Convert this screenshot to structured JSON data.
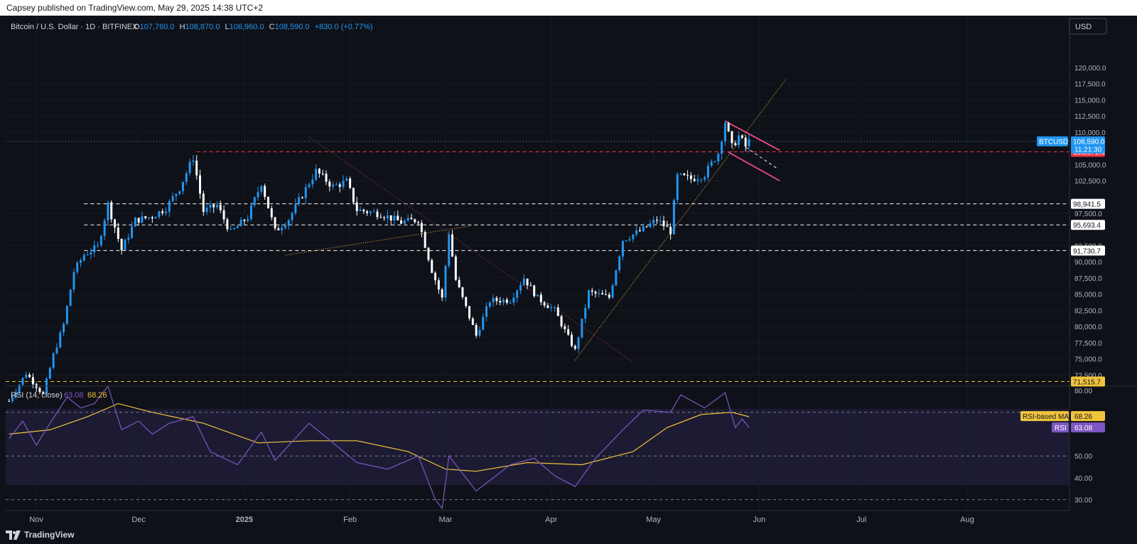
{
  "header": {
    "published": "Capsey published on TradingView.com, May 29, 2025 14:38 UTC+2"
  },
  "legend": {
    "symbol": "Bitcoin / U.S. Dollar · 1D · BITFINEX",
    "o_label": "O",
    "o": "107,760.0",
    "h_label": "H",
    "h": "108,870.0",
    "l_label": "L",
    "l": "106,960.0",
    "c_label": "C",
    "c": "108,590.0",
    "change": "+830.0 (+0.77%)"
  },
  "currency_button": "USD",
  "footer": {
    "brand": "TradingView"
  },
  "colors": {
    "up": "#2196f3",
    "down": "#ffffff",
    "rsi": "#7e57c2",
    "rsi_ma": "#f0c33c",
    "red_dash": "#f23645",
    "pink": "#ff4d8d",
    "yellow": "#f0c33c",
    "bg": "#0f1118"
  },
  "chart_data": {
    "type": "candlestick",
    "x_range": [
      "2024-10-23",
      "2025-08-31"
    ],
    "y_range": [
      70800,
      122500
    ],
    "x_ticks": [
      {
        "date": "2024-11-01",
        "label": "Nov",
        "bold": false
      },
      {
        "date": "2024-12-01",
        "label": "Dec",
        "bold": false
      },
      {
        "date": "2025-01-01",
        "label": "2025",
        "bold": true
      },
      {
        "date": "2025-02-01",
        "label": "Feb",
        "bold": false
      },
      {
        "date": "2025-03-01",
        "label": "Mar",
        "bold": false
      },
      {
        "date": "2025-04-01",
        "label": "Apr",
        "bold": false
      },
      {
        "date": "2025-05-01",
        "label": "May",
        "bold": false
      },
      {
        "date": "2025-06-01",
        "label": "Jun",
        "bold": false
      },
      {
        "date": "2025-07-01",
        "label": "Jul",
        "bold": false
      },
      {
        "date": "2025-08-01",
        "label": "Aug",
        "bold": false
      }
    ],
    "y_ticks": [
      "120,000.0",
      "117,500.0",
      "115,000.0",
      "112,500.0",
      "110,000.0",
      "105,000.0",
      "102,500.0",
      "97,500.0",
      "92,500.0",
      "90,000.0",
      "87,500.0",
      "85,000.0",
      "82,500.0",
      "80,000.0",
      "77,500.0",
      "75,000.0",
      "72,500.0"
    ],
    "closes": [
      {
        "date": "2024-10-24",
        "close": 68500
      },
      {
        "date": "2024-10-29",
        "close": 72800
      },
      {
        "date": "2024-11-03",
        "close": 69500
      },
      {
        "date": "2024-11-06",
        "close": 75600
      },
      {
        "date": "2024-11-09",
        "close": 80300
      },
      {
        "date": "2024-11-12",
        "close": 88500
      },
      {
        "date": "2024-11-15",
        "close": 91100
      },
      {
        "date": "2024-11-19",
        "close": 92300
      },
      {
        "date": "2024-11-22",
        "close": 98900
      },
      {
        "date": "2024-11-26",
        "close": 91800
      },
      {
        "date": "2024-11-30",
        "close": 96400
      },
      {
        "date": "2024-12-05",
        "close": 97000
      },
      {
        "date": "2024-12-09",
        "close": 98300
      },
      {
        "date": "2024-12-13",
        "close": 101400
      },
      {
        "date": "2024-12-17",
        "close": 106100
      },
      {
        "date": "2024-12-20",
        "close": 97800
      },
      {
        "date": "2024-12-24",
        "close": 98700
      },
      {
        "date": "2024-12-28",
        "close": 94500
      },
      {
        "date": "2025-01-02",
        "close": 96900
      },
      {
        "date": "2025-01-06",
        "close": 102200
      },
      {
        "date": "2025-01-10",
        "close": 94700
      },
      {
        "date": "2025-01-14",
        "close": 96600
      },
      {
        "date": "2025-01-20",
        "close": 102200
      },
      {
        "date": "2025-01-22",
        "close": 104000
      },
      {
        "date": "2025-01-27",
        "close": 101600
      },
      {
        "date": "2025-01-31",
        "close": 102400
      },
      {
        "date": "2025-02-03",
        "close": 98000
      },
      {
        "date": "2025-02-10",
        "close": 97400
      },
      {
        "date": "2025-02-16",
        "close": 96100
      },
      {
        "date": "2025-02-21",
        "close": 96500
      },
      {
        "date": "2025-02-25",
        "close": 88700
      },
      {
        "date": "2025-02-28",
        "close": 84300
      },
      {
        "date": "2025-03-02",
        "close": 94500
      },
      {
        "date": "2025-03-04",
        "close": 87200
      },
      {
        "date": "2025-03-10",
        "close": 78600
      },
      {
        "date": "2025-03-14",
        "close": 84000
      },
      {
        "date": "2025-03-20",
        "close": 84100
      },
      {
        "date": "2025-03-24",
        "close": 87500
      },
      {
        "date": "2025-03-28",
        "close": 84400
      },
      {
        "date": "2025-04-02",
        "close": 82500
      },
      {
        "date": "2025-04-06",
        "close": 78300
      },
      {
        "date": "2025-04-08",
        "close": 76300
      },
      {
        "date": "2025-04-12",
        "close": 85300
      },
      {
        "date": "2025-04-18",
        "close": 84500
      },
      {
        "date": "2025-04-22",
        "close": 93400
      },
      {
        "date": "2025-04-28",
        "close": 95000
      },
      {
        "date": "2025-05-02",
        "close": 96500
      },
      {
        "date": "2025-05-06",
        "close": 94700
      },
      {
        "date": "2025-05-08",
        "close": 103200
      },
      {
        "date": "2025-05-12",
        "close": 102800
      },
      {
        "date": "2025-05-16",
        "close": 103500
      },
      {
        "date": "2025-05-20",
        "close": 106800
      },
      {
        "date": "2025-05-22",
        "close": 111600
      },
      {
        "date": "2025-05-24",
        "close": 107700
      },
      {
        "date": "2025-05-26",
        "close": 109400
      },
      {
        "date": "2025-05-28",
        "close": 107800
      },
      {
        "date": "2025-05-29",
        "close": 108590
      }
    ],
    "price_levels": [
      {
        "value": 106971.4,
        "label": "106,971.4",
        "style": "red-dash"
      },
      {
        "value": 98941.5,
        "label": "98,941.5",
        "style": "white-dash"
      },
      {
        "value": 95693.4,
        "label": "95,693.4",
        "style": "white-dash"
      },
      {
        "value": 91730.7,
        "label": "91,730.7",
        "style": "white-dash"
      },
      {
        "value": 71515.7,
        "label": "71,515.7",
        "style": "yellow-dash"
      }
    ],
    "current_price": {
      "symbol": "BTCUSD",
      "price": "108,590.0",
      "countdown": "11:21:30",
      "value": 108590
    },
    "trendlines": [
      {
        "style": "red-dotted",
        "from": {
          "date": "2025-01-20",
          "value": 109300
        },
        "to": {
          "date": "2025-04-25",
          "value": 74500
        }
      },
      {
        "style": "yellow-dotted",
        "from": {
          "date": "2025-01-13",
          "value": 91000
        },
        "to": {
          "date": "2025-03-08",
          "value": 95500
        }
      },
      {
        "style": "yellow-dotted",
        "from": {
          "date": "2025-04-08",
          "value": 74800
        },
        "to": {
          "date": "2025-06-09",
          "value": 118300
        }
      },
      {
        "style": "pink",
        "from": {
          "date": "2025-05-22",
          "value": 111700
        },
        "to": {
          "date": "2025-06-07",
          "value": 107200
        }
      },
      {
        "style": "pink",
        "from": {
          "date": "2025-05-23",
          "value": 106900
        },
        "to": {
          "date": "2025-06-07",
          "value": 102500
        }
      },
      {
        "style": "white-dash",
        "from": {
          "date": "2025-05-28",
          "value": 107700
        },
        "to": {
          "date": "2025-06-06",
          "value": 104500
        }
      }
    ],
    "rsi": {
      "title": "RSI (14, close)",
      "value": "63.08",
      "ma_value": "68.26",
      "y_range": [
        25,
        82
      ],
      "y_ticks": [
        "80.00",
        "50.00",
        "40.00",
        "30.00"
      ],
      "bands": [
        70,
        50,
        30
      ],
      "rsi_label": "RSI",
      "ma_label": "RSI-based MA",
      "rsi_points": [
        {
          "date": "2024-10-24",
          "value": 58
        },
        {
          "date": "2024-10-28",
          "value": 66
        },
        {
          "date": "2024-11-01",
          "value": 55
        },
        {
          "date": "2024-11-05",
          "value": 65
        },
        {
          "date": "2024-11-10",
          "value": 77
        },
        {
          "date": "2024-11-14",
          "value": 72
        },
        {
          "date": "2024-11-18",
          "value": 74
        },
        {
          "date": "2024-11-22",
          "value": 82
        },
        {
          "date": "2024-11-26",
          "value": 62
        },
        {
          "date": "2024-12-01",
          "value": 66
        },
        {
          "date": "2024-12-05",
          "value": 60
        },
        {
          "date": "2024-12-10",
          "value": 65
        },
        {
          "date": "2024-12-17",
          "value": 68
        },
        {
          "date": "2024-12-22",
          "value": 52
        },
        {
          "date": "2024-12-30",
          "value": 46
        },
        {
          "date": "2025-01-06",
          "value": 61
        },
        {
          "date": "2025-01-10",
          "value": 48
        },
        {
          "date": "2025-01-20",
          "value": 65
        },
        {
          "date": "2025-01-27",
          "value": 56
        },
        {
          "date": "2025-02-03",
          "value": 47
        },
        {
          "date": "2025-02-12",
          "value": 44
        },
        {
          "date": "2025-02-21",
          "value": 50
        },
        {
          "date": "2025-02-26",
          "value": 30
        },
        {
          "date": "2025-02-28",
          "value": 26
        },
        {
          "date": "2025-03-02",
          "value": 50
        },
        {
          "date": "2025-03-10",
          "value": 34
        },
        {
          "date": "2025-03-20",
          "value": 46
        },
        {
          "date": "2025-03-27",
          "value": 49
        },
        {
          "date": "2025-04-02",
          "value": 41
        },
        {
          "date": "2025-04-08",
          "value": 36
        },
        {
          "date": "2025-04-14",
          "value": 49
        },
        {
          "date": "2025-04-22",
          "value": 62
        },
        {
          "date": "2025-04-28",
          "value": 71
        },
        {
          "date": "2025-05-06",
          "value": 70
        },
        {
          "date": "2025-05-09",
          "value": 78
        },
        {
          "date": "2025-05-16",
          "value": 72
        },
        {
          "date": "2025-05-22",
          "value": 79
        },
        {
          "date": "2025-05-25",
          "value": 63
        },
        {
          "date": "2025-05-27",
          "value": 67
        },
        {
          "date": "2025-05-29",
          "value": 63
        }
      ],
      "ma_points": [
        {
          "date": "2024-10-24",
          "value": 60
        },
        {
          "date": "2024-11-05",
          "value": 62
        },
        {
          "date": "2024-11-16",
          "value": 68
        },
        {
          "date": "2024-11-25",
          "value": 74
        },
        {
          "date": "2024-12-05",
          "value": 70
        },
        {
          "date": "2024-12-20",
          "value": 65
        },
        {
          "date": "2025-01-05",
          "value": 56
        },
        {
          "date": "2025-01-20",
          "value": 57
        },
        {
          "date": "2025-02-03",
          "value": 57
        },
        {
          "date": "2025-02-18",
          "value": 52
        },
        {
          "date": "2025-03-01",
          "value": 44
        },
        {
          "date": "2025-03-10",
          "value": 43
        },
        {
          "date": "2025-03-25",
          "value": 47
        },
        {
          "date": "2025-04-10",
          "value": 46
        },
        {
          "date": "2025-04-25",
          "value": 52
        },
        {
          "date": "2025-05-05",
          "value": 63
        },
        {
          "date": "2025-05-15",
          "value": 69
        },
        {
          "date": "2025-05-24",
          "value": 70
        },
        {
          "date": "2025-05-29",
          "value": 68
        }
      ]
    }
  }
}
